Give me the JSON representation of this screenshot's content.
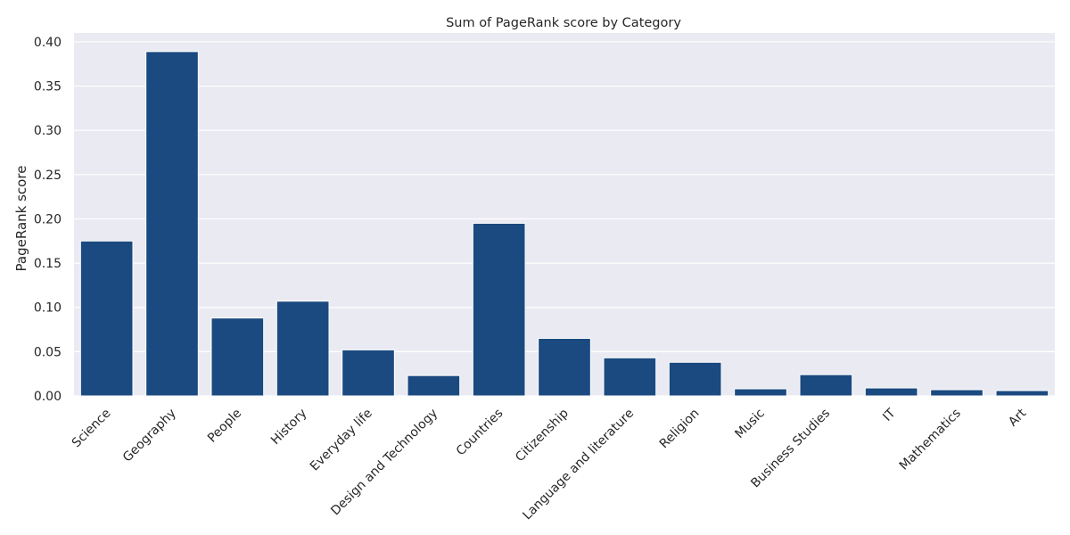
{
  "chart_data": {
    "type": "bar",
    "title": "Sum of PageRank score by Category",
    "xlabel": "",
    "ylabel": "PageRank score",
    "categories": [
      "Science",
      "Geography",
      "People",
      "History",
      "Everyday life",
      "Design and Technology",
      "Countries",
      "Citizenship",
      "Language and literature",
      "Religion",
      "Music",
      "Business Studies",
      "IT",
      "Mathematics",
      "Art"
    ],
    "values": [
      0.175,
      0.389,
      0.088,
      0.107,
      0.052,
      0.023,
      0.195,
      0.065,
      0.043,
      0.038,
      0.008,
      0.024,
      0.009,
      0.007,
      0.006
    ],
    "ylim": [
      0,
      0.41
    ],
    "yticks": [
      "0.00",
      "0.05",
      "0.10",
      "0.15",
      "0.20",
      "0.25",
      "0.30",
      "0.35",
      "0.40"
    ],
    "grid": true,
    "bar_color": "#1a4a80",
    "plot_background": "#eaeaf2",
    "grid_color": "#ffffff"
  }
}
